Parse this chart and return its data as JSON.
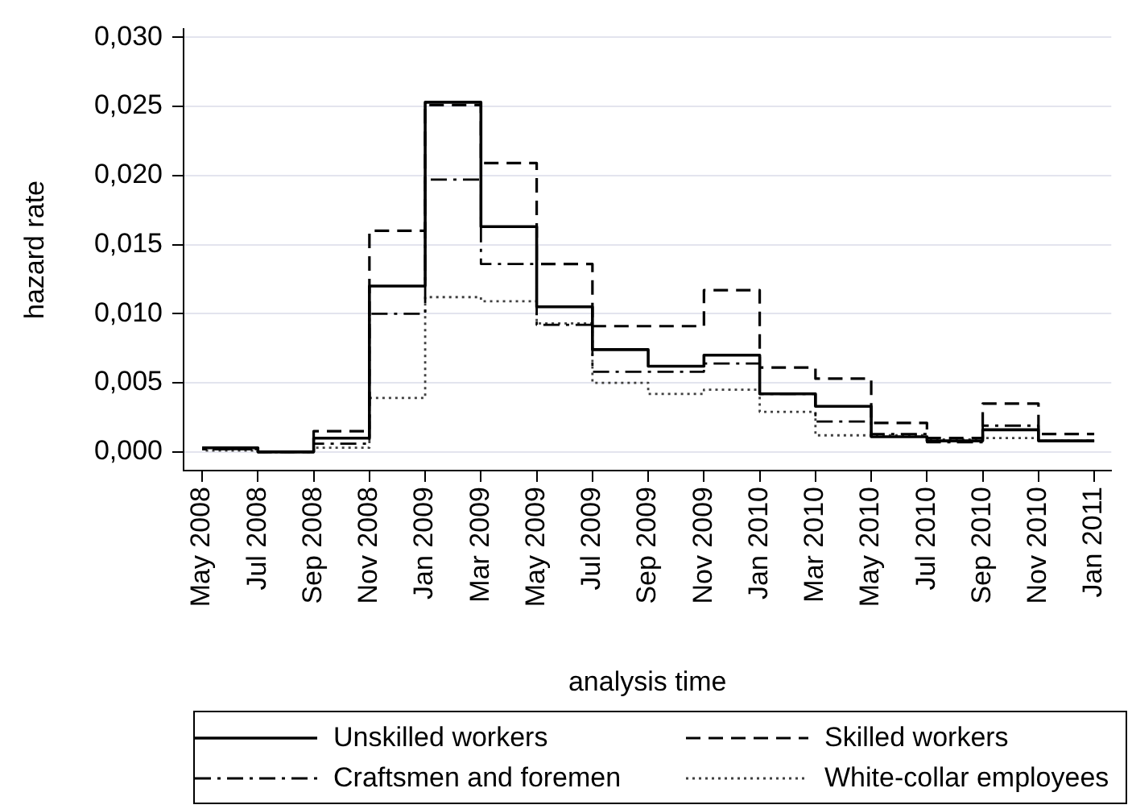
{
  "chart_data": {
    "type": "step",
    "xlabel": "analysis time",
    "ylabel": "hazard rate",
    "x": [
      "2008-05",
      "2008-07",
      "2008-09",
      "2008-11",
      "2009-01",
      "2009-03",
      "2009-05",
      "2009-07",
      "2009-09",
      "2009-11",
      "2010-01",
      "2010-03",
      "2010-05",
      "2010-07",
      "2010-09",
      "2010-11",
      "2011-01"
    ],
    "series": [
      {
        "name": "Unskilled workers",
        "color": "#000000",
        "line_style": "solid",
        "values": [
          0.0003,
          0.0,
          0.001,
          0.012,
          0.0253,
          0.0163,
          0.0105,
          0.0074,
          0.0062,
          0.007,
          0.0042,
          0.0033,
          0.0011,
          0.0008,
          0.0016,
          0.0008,
          0.0008
        ]
      },
      {
        "name": "Skilled workers",
        "color": "#000000",
        "line_style": "dashed",
        "values": [
          0.0002,
          0.0,
          0.0015,
          0.016,
          0.0251,
          0.0209,
          0.0136,
          0.0091,
          0.0091,
          0.0117,
          0.0061,
          0.0053,
          0.0021,
          0.001,
          0.0035,
          0.0013,
          0.0013
        ]
      },
      {
        "name": "Craftsmen and foremen",
        "color": "#000000",
        "line_style": "dashdot",
        "values": [
          0.0002,
          0.0,
          0.0006,
          0.01,
          0.0197,
          0.0136,
          0.0092,
          0.0058,
          0.0058,
          0.0064,
          0.0042,
          0.0022,
          0.0013,
          0.0007,
          0.0019,
          0.0008,
          0.0008
        ]
      },
      {
        "name": "White-collar employees",
        "color": "#404040",
        "line_style": "dotted",
        "values": [
          0.0001,
          0.0,
          0.0003,
          0.0039,
          0.0112,
          0.0109,
          0.0093,
          0.005,
          0.0042,
          0.0045,
          0.0029,
          0.0012,
          0.0012,
          0.0009,
          0.001,
          0.0008,
          0.0008
        ]
      }
    ],
    "xlim": [
      "2008-04-11",
      "2011-01-20"
    ],
    "xticks": [
      {
        "value": "2008-05",
        "label": "May 2008"
      },
      {
        "value": "2008-07",
        "label": "Jul 2008"
      },
      {
        "value": "2008-09",
        "label": "Sep 2008"
      },
      {
        "value": "2008-11",
        "label": "Nov 2008"
      },
      {
        "value": "2009-01",
        "label": "Jan 2009"
      },
      {
        "value": "2009-03",
        "label": "Mar 2009"
      },
      {
        "value": "2009-05",
        "label": "May 2009"
      },
      {
        "value": "2009-07",
        "label": "Jul 2009"
      },
      {
        "value": "2009-09",
        "label": "Sep 2009"
      },
      {
        "value": "2009-11",
        "label": "Nov 2009"
      },
      {
        "value": "2010-01",
        "label": "Jan 2010"
      },
      {
        "value": "2010-03",
        "label": "Mar 2010"
      },
      {
        "value": "2010-05",
        "label": "May 2010"
      },
      {
        "value": "2010-07",
        "label": "Jul 2010"
      },
      {
        "value": "2010-09",
        "label": "Sep 2010"
      },
      {
        "value": "2010-11",
        "label": "Nov 2010"
      },
      {
        "value": "2011-01",
        "label": "Jan 2011"
      }
    ],
    "ylim": [
      -0.00135,
      0.0306
    ],
    "yticks": [
      {
        "value": 0,
        "label": "0,000"
      },
      {
        "value": 0.005,
        "label": "0,005"
      },
      {
        "value": 0.01,
        "label": "0,010"
      },
      {
        "value": 0.015,
        "label": "0,015"
      },
      {
        "value": 0.02,
        "label": "0,020"
      },
      {
        "value": 0.025,
        "label": "0,025"
      },
      {
        "value": 0.03,
        "label": "0,030"
      }
    ],
    "grid": "y",
    "legend": "bottom",
    "marker": "none"
  }
}
